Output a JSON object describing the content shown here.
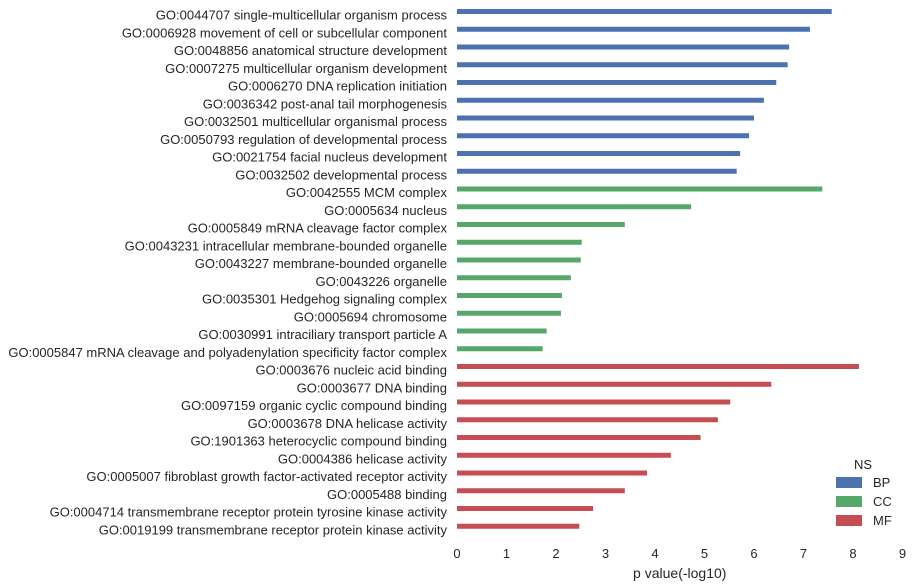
{
  "chart_data": {
    "type": "bar",
    "orientation": "horizontal",
    "xlabel": "p value(-log10)",
    "ylabel": "",
    "xlim": [
      0,
      9
    ],
    "x_ticks": [
      0,
      1,
      2,
      3,
      4,
      5,
      6,
      7,
      8,
      9
    ],
    "grid": false,
    "legend": {
      "title": "NS",
      "placement": "bottom-right",
      "entries": [
        {
          "name": "BP",
          "color": "#4c72b0"
        },
        {
          "name": "CC",
          "color": "#55a868"
        },
        {
          "name": "MF",
          "color": "#c44e52"
        }
      ]
    },
    "bars": [
      {
        "label": "GO:0044707 single-multicellular organism process",
        "ns": "BP",
        "value": 7.57
      },
      {
        "label": "GO:0006928 movement of cell or subcellular component",
        "ns": "BP",
        "value": 7.13
      },
      {
        "label": "GO:0048856 anatomical structure development",
        "ns": "BP",
        "value": 6.71
      },
      {
        "label": "GO:0007275 multicellular organism development",
        "ns": "BP",
        "value": 6.68
      },
      {
        "label": "GO:0006270 DNA replication initiation",
        "ns": "BP",
        "value": 6.45
      },
      {
        "label": "GO:0036342 post-anal tail morphogenesis",
        "ns": "BP",
        "value": 6.2
      },
      {
        "label": "GO:0032501 multicellular organismal process",
        "ns": "BP",
        "value": 6.0
      },
      {
        "label": "GO:0050793 regulation of developmental process",
        "ns": "BP",
        "value": 5.9
      },
      {
        "label": "GO:0021754 facial nucleus development",
        "ns": "BP",
        "value": 5.72
      },
      {
        "label": "GO:0032502 developmental process",
        "ns": "BP",
        "value": 5.65
      },
      {
        "label": "GO:0042555 MCM complex",
        "ns": "CC",
        "value": 7.38
      },
      {
        "label": "GO:0005634 nucleus",
        "ns": "CC",
        "value": 4.73
      },
      {
        "label": "GO:0005849 mRNA cleavage factor complex",
        "ns": "CC",
        "value": 3.39
      },
      {
        "label": "GO:0043231 intracellular membrane-bounded organelle",
        "ns": "CC",
        "value": 2.52
      },
      {
        "label": "GO:0043227 membrane-bounded organelle",
        "ns": "CC",
        "value": 2.5
      },
      {
        "label": "GO:0043226 organelle",
        "ns": "CC",
        "value": 2.3
      },
      {
        "label": "GO:0035301 Hedgehog signaling complex",
        "ns": "CC",
        "value": 2.12
      },
      {
        "label": "GO:0005694 chromosome",
        "ns": "CC",
        "value": 2.1
      },
      {
        "label": "GO:0030991 intraciliary transport particle A",
        "ns": "CC",
        "value": 1.81
      },
      {
        "label": "GO:0005847 mRNA cleavage and polyadenylation specificity factor complex",
        "ns": "CC",
        "value": 1.73
      },
      {
        "label": "GO:0003676 nucleic acid binding",
        "ns": "MF",
        "value": 8.12
      },
      {
        "label": "GO:0003677 DNA binding",
        "ns": "MF",
        "value": 6.35
      },
      {
        "label": "GO:0097159 organic cyclic compound binding",
        "ns": "MF",
        "value": 5.52
      },
      {
        "label": "GO:0003678 DNA helicase activity",
        "ns": "MF",
        "value": 5.27
      },
      {
        "label": "GO:1901363 heterocyclic compound binding",
        "ns": "MF",
        "value": 4.92
      },
      {
        "label": "GO:0004386 helicase activity",
        "ns": "MF",
        "value": 4.32
      },
      {
        "label": "GO:0005007 fibroblast growth factor-activated receptor activity",
        "ns": "MF",
        "value": 3.84
      },
      {
        "label": "GO:0005488 binding",
        "ns": "MF",
        "value": 3.39
      },
      {
        "label": "GO:0004714 transmembrane receptor protein tyrosine kinase activity",
        "ns": "MF",
        "value": 2.75
      },
      {
        "label": "GO:0019199 transmembrane receptor protein kinase activity",
        "ns": "MF",
        "value": 2.47
      }
    ]
  }
}
